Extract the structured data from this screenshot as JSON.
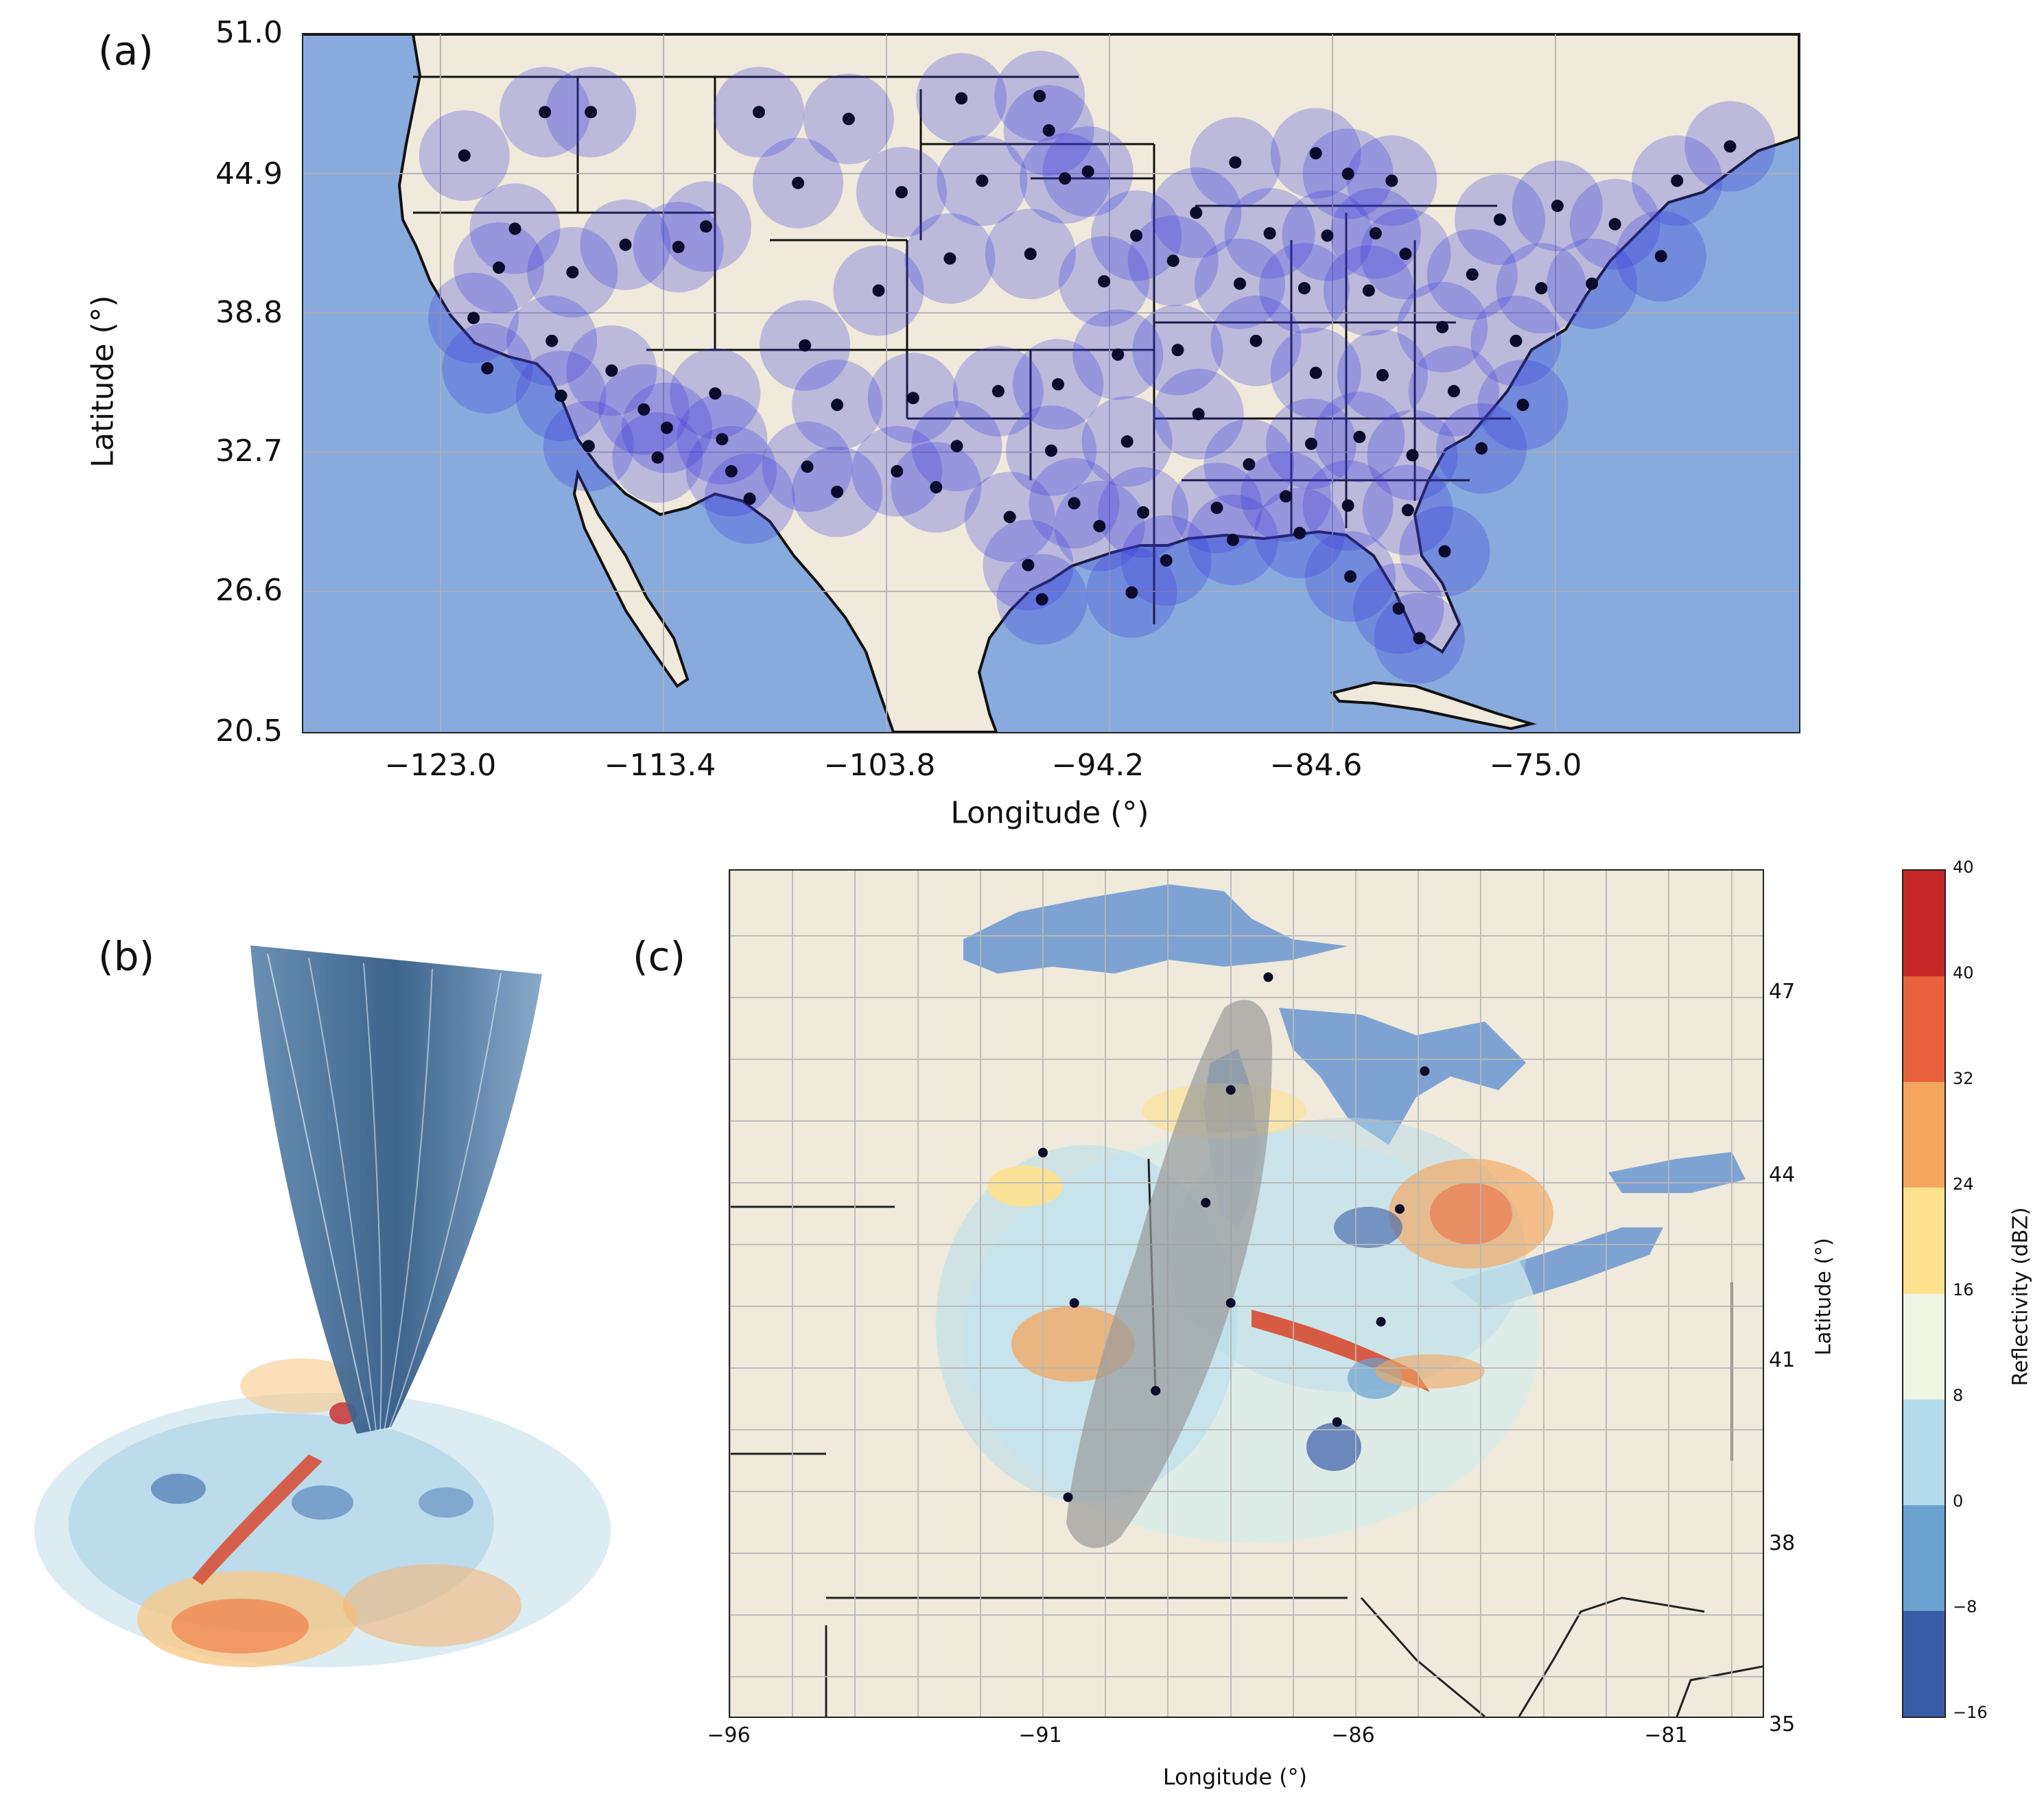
{
  "panels": {
    "a": {
      "label": "(a)",
      "xlabel": "Longitude (°)",
      "ylabel": "Latitude (°)",
      "xticks": [
        "−123.0",
        "−113.4",
        "−103.8",
        "−94.2",
        "−84.6",
        "−75.0"
      ],
      "yticks": [
        "51.0",
        "44.9",
        "38.8",
        "32.7",
        "26.6",
        "20.5"
      ]
    },
    "b": {
      "label": "(b)"
    },
    "c": {
      "label": "(c)",
      "xlabel": "Longitude (°)",
      "ylabel": "Latitude (°)",
      "xticks": [
        "−96",
        "−91",
        "−86",
        "−81"
      ],
      "yticks": [
        "47",
        "44",
        "41",
        "38",
        "35"
      ]
    },
    "colorbar": {
      "label": "Reflectivity (dBZ)",
      "ticks": [
        "40",
        "40",
        "32",
        "24",
        "16",
        "8",
        "0",
        "−8",
        "−16"
      ],
      "colors": [
        "#c62828",
        "#e8603c",
        "#f4a65e",
        "#fde18e",
        "#eef6e3",
        "#b4dcec",
        "#6aa2d0",
        "#3a5da8"
      ]
    }
  },
  "colors": {
    "ocean": "#88aadd",
    "land": "#efeadb",
    "radar_coverage": "#3b3bdc",
    "radar_site": "#0a0a2a",
    "beam": "#3f6f9e"
  },
  "chart_data": [
    {
      "type": "scatter",
      "panel": "a",
      "description_source": "radar site locations over CONUS",
      "xlim": [
        -130,
        -65
      ],
      "ylim": [
        20.5,
        51.0
      ],
      "x": [
        -123.0,
        -119.5,
        -117.5,
        -120.8,
        -112.5,
        -110.2,
        -106.3,
        -101.4,
        -98.0,
        -97.6,
        -95.9,
        -89.5,
        -86.0,
        -84.6,
        -82.7,
        -83.4,
        -78.0,
        -75.5,
        -73.0,
        -70.3,
        -68.0,
        -121.5,
        -118.3,
        -116.0,
        -113.7,
        -108.5,
        -104.0,
        -100.5,
        -96.9,
        -93.8,
        -91.2,
        -88.0,
        -85.5,
        -82.1,
        -79.2,
        -76.2,
        -74.0,
        -71.0,
        -122.6,
        -119.2,
        -116.6,
        -112.1,
        -108.2,
        -105.0,
        -101.9,
        -98.4,
        -95.2,
        -92.2,
        -89.3,
        -86.5,
        -83.7,
        -80.5,
        -77.3,
        -122.0,
        -118.8,
        -115.2,
        -111.8,
        -106.8,
        -103.5,
        -99.8,
        -97.2,
        -94.6,
        -92.0,
        -88.6,
        -86.0,
        -83.1,
        -80.0,
        -77.0,
        -117.6,
        -114.6,
        -111.4,
        -108.1,
        -104.2,
        -101.6,
        -97.5,
        -94.2,
        -91.1,
        -88.9,
        -86.2,
        -84.1,
        -81.8,
        -78.8,
        -114.2,
        -110.6,
        -106.8,
        -102.5,
        -99.3,
        -96.5,
        -93.5,
        -90.3,
        -87.3,
        -84.6,
        -82.0,
        -98.5,
        -95.4,
        -92.5,
        -89.6,
        -86.7,
        -84.5,
        -82.4,
        -97.9,
        -94.0,
        -81.5,
        -80.4
      ],
      "y": [
        45.7,
        47.6,
        47.6,
        42.5,
        42.6,
        47.6,
        47.3,
        48.2,
        48.3,
        46.8,
        45.0,
        45.4,
        45.8,
        44.9,
        44.6,
        42.3,
        42.9,
        43.5,
        42.7,
        44.6,
        46.1,
        40.8,
        40.6,
        41.8,
        41.7,
        44.5,
        44.1,
        44.6,
        44.7,
        42.2,
        43.2,
        42.3,
        42.2,
        41.4,
        40.5,
        39.9,
        40.1,
        41.3,
        38.6,
        37.6,
        36.3,
        35.3,
        37.4,
        39.8,
        41.2,
        41.4,
        40.2,
        41.1,
        40.1,
        39.9,
        39.8,
        38.2,
        37.6,
        36.4,
        35.2,
        34.6,
        33.3,
        34.8,
        35.1,
        35.4,
        35.7,
        37.0,
        37.2,
        37.6,
        36.2,
        36.1,
        35.4,
        34.8,
        33.0,
        32.5,
        31.9,
        32.1,
        31.9,
        33.0,
        32.8,
        33.2,
        34.4,
        32.2,
        33.1,
        33.4,
        32.6,
        32.9,
        33.8,
        30.7,
        31.0,
        31.2,
        29.9,
        30.5,
        30.1,
        30.3,
        30.8,
        30.4,
        30.2,
        27.8,
        29.5,
        28.0,
        28.9,
        29.2,
        27.3,
        25.9,
        26.3,
        26.6,
        24.6,
        28.4
      ]
    },
    {
      "type": "scatter",
      "panel": "c",
      "description_source": "radar site locations in Midwest / Great Lakes",
      "xlim": [
        -96,
        -79.5
      ],
      "ylim": [
        35,
        48.5
      ],
      "x": [
        -87.4,
        -88.0,
        -91.0,
        -88.4,
        -84.9,
        -85.3,
        -90.5,
        -88.0,
        -85.6,
        -89.2,
        -86.3,
        -90.6
      ],
      "y": [
        46.8,
        45.0,
        44.0,
        43.2,
        45.3,
        43.1,
        41.6,
        41.6,
        41.3,
        40.2,
        39.7,
        38.5
      ]
    }
  ]
}
